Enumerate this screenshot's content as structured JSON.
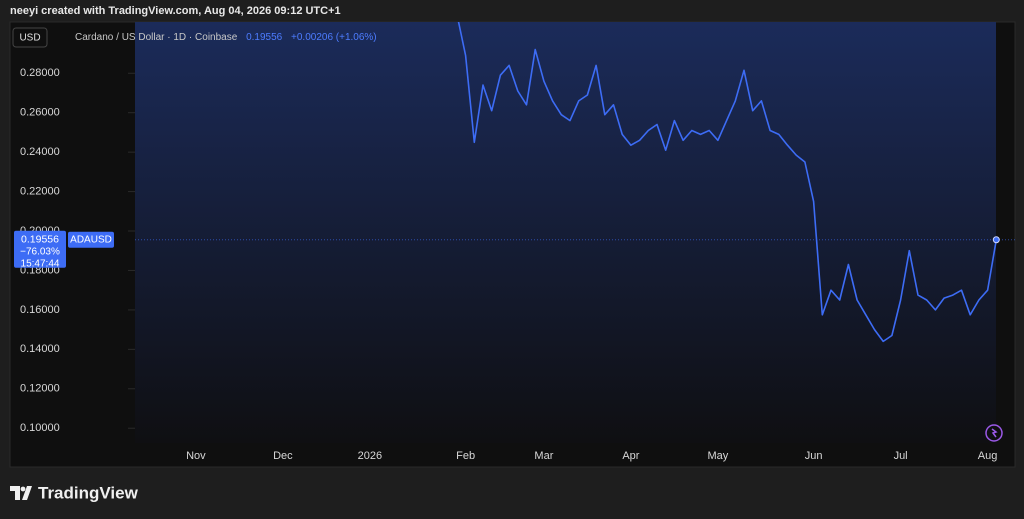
{
  "header": "neeyi created with TradingView.com, Aug 04, 2026 09:12 UTC+1",
  "footer": "TradingView",
  "chart_data": {
    "type": "line",
    "currency": "USD",
    "title": "Cardano / US Dollar · 1D · Coinbase",
    "change": "+0.00206 (+1.06%)",
    "symbol": "ADAUSD",
    "percent_change": "−76.03%",
    "countdown": "15:47:44",
    "categories": [
      null,
      null,
      null,
      null,
      null,
      null,
      null,
      "Nov",
      null,
      null,
      null,
      null,
      null,
      null,
      null,
      null,
      null,
      "Dec",
      null,
      null,
      null,
      null,
      null,
      null,
      null,
      null,
      null,
      "2026",
      null,
      null,
      null,
      null,
      null,
      null,
      null,
      null,
      null,
      null,
      "Feb",
      null,
      null,
      null,
      null,
      null,
      null,
      null,
      null,
      "Mar",
      null,
      null,
      null,
      null,
      null,
      null,
      null,
      null,
      null,
      "Apr",
      null,
      null,
      null,
      null,
      null,
      null,
      null,
      null,
      null,
      "May",
      null,
      null,
      null,
      null,
      null,
      null,
      null,
      null,
      null,
      null,
      "Jun",
      null,
      null,
      null,
      null,
      null,
      null,
      null,
      null,
      null,
      "Jul",
      null,
      null,
      null,
      null,
      null,
      null,
      null,
      null,
      null,
      "Aug",
      null
    ],
    "series": [
      {
        "name": "ADAUSD",
        "color": "#3d6cf5",
        "values": [
          null,
          null,
          null,
          null,
          null,
          null,
          null,
          null,
          null,
          null,
          null,
          null,
          null,
          null,
          null,
          null,
          null,
          null,
          null,
          null,
          null,
          null,
          null,
          null,
          null,
          null,
          null,
          null,
          null,
          null,
          null,
          null,
          null,
          null,
          null,
          null,
          null,
          0.31,
          0.289,
          0.245,
          0.274,
          0.261,
          0.279,
          0.284,
          0.271,
          0.264,
          0.292,
          0.276,
          0.266,
          0.259,
          0.256,
          0.266,
          0.269,
          0.284,
          0.259,
          0.264,
          0.249,
          0.2435,
          0.246,
          0.251,
          0.254,
          0.241,
          0.256,
          0.246,
          0.251,
          0.249,
          0.251,
          0.246,
          0.256,
          0.266,
          0.2815,
          0.261,
          0.266,
          0.251,
          0.249,
          0.2435,
          0.2385,
          0.235,
          0.215,
          0.1575,
          0.17,
          0.165,
          0.183,
          0.165,
          0.1575,
          0.15,
          0.144,
          0.147,
          0.165,
          0.19,
          0.1675,
          0.165,
          0.16,
          0.166,
          0.1675,
          0.17,
          0.1575,
          0.165,
          0.17,
          0.19556
        ]
      }
    ],
    "ylim": [
      0.0925,
      0.306
    ],
    "yticks": [
      {
        "value": 0.1,
        "label": "0.10000"
      },
      {
        "value": 0.12,
        "label": "0.12000"
      },
      {
        "value": 0.14,
        "label": "0.14000"
      },
      {
        "value": 0.16,
        "label": "0.16000"
      },
      {
        "value": 0.18,
        "label": "0.18000"
      },
      {
        "value": 0.2,
        "label": "0.20000"
      },
      {
        "value": 0.22,
        "label": "0.22000"
      },
      {
        "value": 0.24,
        "label": "0.24000"
      },
      {
        "value": 0.26,
        "label": "0.26000"
      },
      {
        "value": 0.28,
        "label": "0.28000"
      }
    ],
    "grid": false
  }
}
